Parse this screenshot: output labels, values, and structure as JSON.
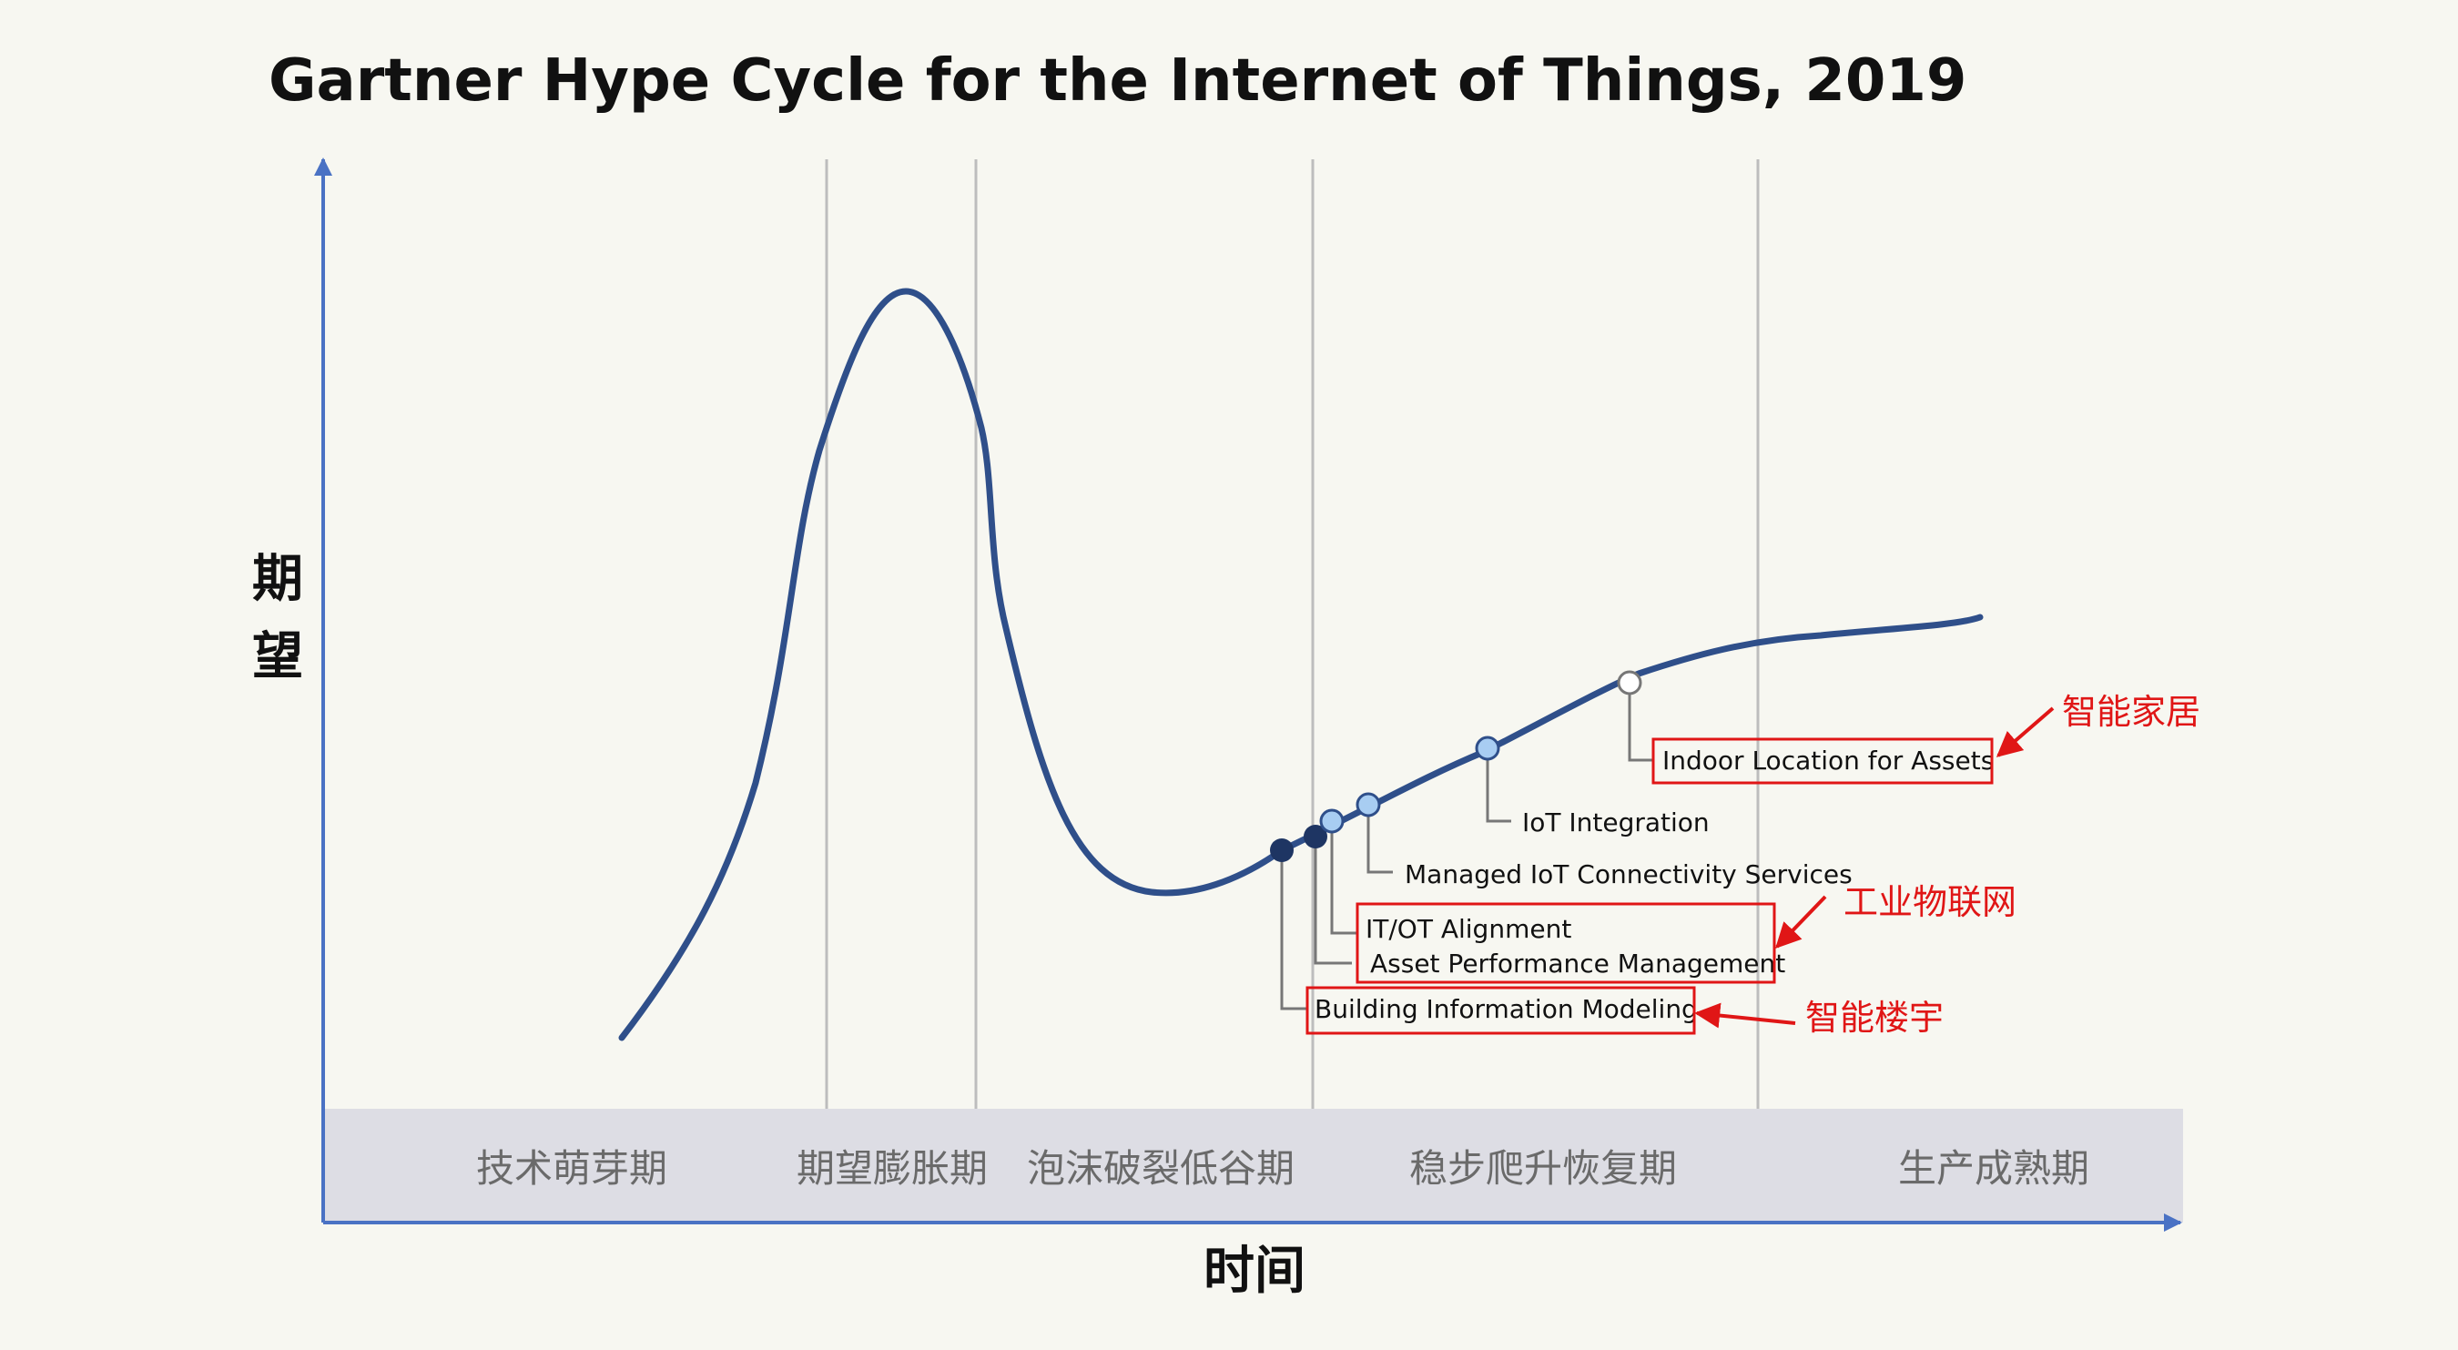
{
  "title": "Gartner Hype Cycle for the Internet of Things, 2019",
  "y_axis_label": "期望",
  "x_axis_label": "时间",
  "phases": [
    "技术萌芽期",
    "期望膨胀期",
    "泡沫破裂低谷期",
    "稳步爬升恢复期",
    "生产成熟期"
  ],
  "technologies": [
    {
      "name": "Building Information Modeling",
      "marker": "dark"
    },
    {
      "name": "Asset Performance Management",
      "marker": "dark"
    },
    {
      "name": "IT/OT Alignment",
      "marker": "light"
    },
    {
      "name": "Managed IoT Connectivity Services",
      "marker": "light"
    },
    {
      "name": "IoT Integration",
      "marker": "light"
    },
    {
      "name": "Indoor Location for Assets",
      "marker": "hollow"
    }
  ],
  "annotations": [
    "智能家居",
    "工业物联网",
    "智能楼宇"
  ],
  "colors": {
    "curve": "#2f4f8a",
    "axis": "#4a72c4",
    "dark_marker": "#1e3563",
    "light_marker": "#a8cdf2",
    "highlight": "#e01616",
    "phase_band": "#dddde4"
  }
}
